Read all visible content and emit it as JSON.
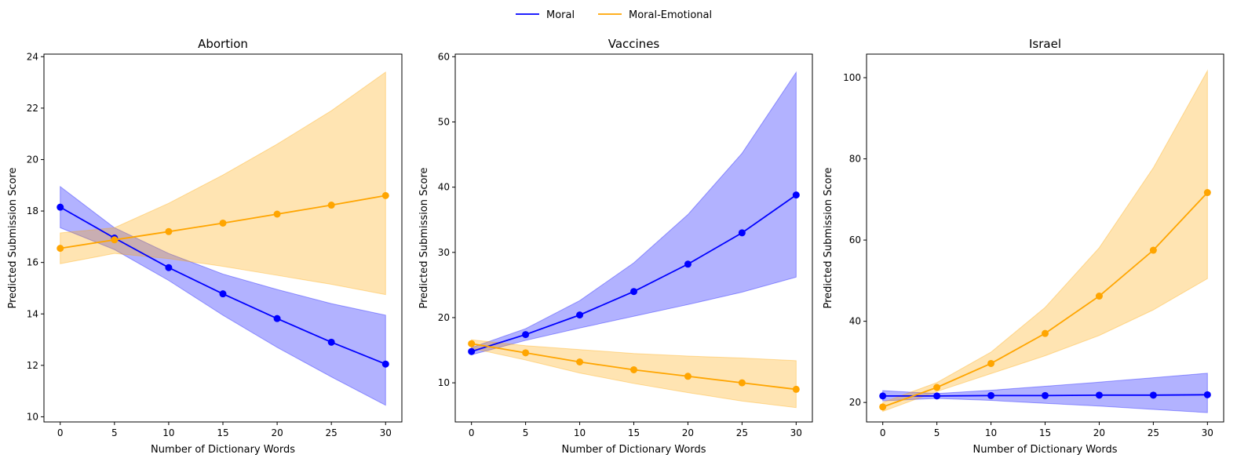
{
  "legend": {
    "items": [
      {
        "label": "Moral",
        "color": "#0000ff"
      },
      {
        "label": "Moral-Emotional",
        "color": "#ffa500"
      }
    ],
    "placement": "top-center"
  },
  "chart_data": [
    {
      "type": "line",
      "title": "Abortion",
      "xlabel": "Number of Dictionary Words",
      "ylabel": "Predicted Submission Score",
      "xlim": [
        -1.5,
        31.5
      ],
      "ylim": [
        9.8,
        24.1
      ],
      "xticks": [
        0,
        5,
        10,
        15,
        20,
        25,
        30
      ],
      "yticks": [
        10,
        12,
        14,
        16,
        18,
        20,
        22,
        24
      ],
      "grid": false,
      "x": [
        0,
        5,
        10,
        15,
        20,
        25,
        30
      ],
      "series": [
        {
          "name": "Moral",
          "color": "#0000ff",
          "values": [
            18.15,
            16.95,
            15.8,
            14.78,
            13.82,
            12.9,
            12.05
          ],
          "ci_lower": [
            17.35,
            16.5,
            15.3,
            13.95,
            12.7,
            11.55,
            10.45
          ],
          "ci_upper": [
            18.95,
            17.35,
            16.35,
            15.55,
            14.95,
            14.4,
            13.95
          ]
        },
        {
          "name": "Moral-Emotional",
          "color": "#ffa500",
          "values": [
            16.55,
            16.88,
            17.2,
            17.53,
            17.88,
            18.23,
            18.6
          ],
          "ci_lower": [
            15.95,
            16.35,
            16.15,
            15.85,
            15.5,
            15.15,
            14.75
          ],
          "ci_upper": [
            17.15,
            17.35,
            18.3,
            19.4,
            20.6,
            21.9,
            23.4
          ]
        }
      ]
    },
    {
      "type": "line",
      "title": "Vaccines",
      "xlabel": "Number of Dictionary Words",
      "ylabel": "Predicted Submission Score",
      "xlim": [
        -1.5,
        31.5
      ],
      "ylim": [
        4,
        60.4
      ],
      "xticks": [
        0,
        5,
        10,
        15,
        20,
        25,
        30
      ],
      "yticks": [
        10,
        20,
        30,
        40,
        50,
        60
      ],
      "grid": false,
      "x": [
        0,
        5,
        10,
        15,
        20,
        25,
        30
      ],
      "series": [
        {
          "name": "Moral",
          "color": "#0000ff",
          "values": [
            14.8,
            17.4,
            20.4,
            24.0,
            28.2,
            33.0,
            38.8
          ],
          "ci_lower": [
            14.3,
            16.5,
            18.4,
            20.2,
            22.0,
            23.9,
            26.2
          ],
          "ci_upper": [
            15.4,
            18.3,
            22.6,
            28.4,
            35.8,
            45.2,
            57.6
          ]
        },
        {
          "name": "Moral-Emotional",
          "color": "#ffa500",
          "values": [
            16.0,
            14.6,
            13.2,
            12.0,
            11.0,
            10.0,
            9.0
          ],
          "ci_lower": [
            15.3,
            13.5,
            11.5,
            9.9,
            8.5,
            7.2,
            6.2
          ],
          "ci_upper": [
            16.6,
            15.7,
            15.1,
            14.5,
            14.1,
            13.8,
            13.4
          ]
        }
      ]
    },
    {
      "type": "line",
      "title": "Israel",
      "xlabel": "Number of Dictionary Words",
      "ylabel": "Predicted Submission Score",
      "xlim": [
        -1.5,
        31.5
      ],
      "ylim": [
        15.2,
        105.8
      ],
      "xticks": [
        0,
        5,
        10,
        15,
        20,
        25,
        30
      ],
      "yticks": [
        20,
        40,
        60,
        80,
        100
      ],
      "grid": false,
      "x": [
        0,
        5,
        10,
        15,
        20,
        25,
        30
      ],
      "series": [
        {
          "name": "Moral",
          "color": "#0000ff",
          "values": [
            21.6,
            21.6,
            21.7,
            21.7,
            21.8,
            21.8,
            21.9
          ],
          "ci_lower": [
            20.4,
            21.0,
            20.5,
            19.8,
            19.1,
            18.3,
            17.5
          ],
          "ci_upper": [
            22.9,
            22.2,
            23.0,
            24.0,
            25.0,
            26.1,
            27.2
          ]
        },
        {
          "name": "Moral-Emotional",
          "color": "#ffa500",
          "values": [
            18.9,
            23.7,
            29.6,
            37.0,
            46.2,
            57.5,
            71.7
          ],
          "ci_lower": [
            17.8,
            22.7,
            27.1,
            31.5,
            36.5,
            42.8,
            50.5
          ],
          "ci_upper": [
            20.0,
            24.9,
            32.4,
            43.4,
            58.1,
            77.8,
            101.7
          ]
        }
      ]
    }
  ]
}
